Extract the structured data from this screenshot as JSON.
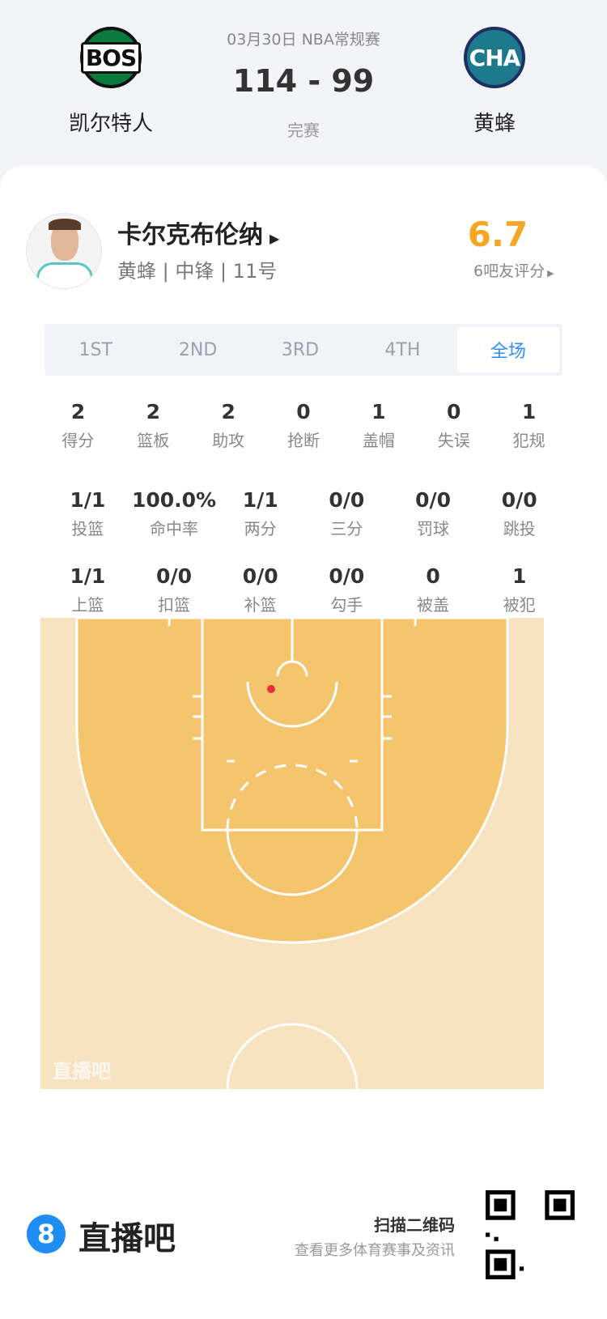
{
  "match": {
    "date_league": "03月30日 NBA常规赛",
    "score": "114 - 99",
    "status": "完赛",
    "home": {
      "abbr": "BOS",
      "name": "凯尔特人"
    },
    "away": {
      "abbr": "CHA",
      "name": "黄蜂"
    }
  },
  "player": {
    "name": "卡尔克布伦纳",
    "info": "黄蜂 | 中锋 | 11号",
    "rating": "6.7",
    "rating_label": "6吧友评分"
  },
  "tabs": [
    {
      "label": "1ST"
    },
    {
      "label": "2ND"
    },
    {
      "label": "3RD"
    },
    {
      "label": "4TH"
    },
    {
      "label": "全场",
      "active": true
    }
  ],
  "stats": [
    [
      {
        "v": "2",
        "l": "得分"
      },
      {
        "v": "2",
        "l": "篮板"
      },
      {
        "v": "2",
        "l": "助攻"
      },
      {
        "v": "0",
        "l": "抢断"
      },
      {
        "v": "1",
        "l": "盖帽"
      },
      {
        "v": "0",
        "l": "失误"
      },
      {
        "v": "1",
        "l": "犯规"
      }
    ],
    [
      {
        "v": "1/1",
        "l": "投篮"
      },
      {
        "v": "100.0%",
        "l": "命中率"
      },
      {
        "v": "1/1",
        "l": "两分"
      },
      {
        "v": "0/0",
        "l": "三分"
      },
      {
        "v": "0/0",
        "l": "罚球"
      },
      {
        "v": "0/0",
        "l": "跳投"
      }
    ],
    [
      {
        "v": "1/1",
        "l": "上篮"
      },
      {
        "v": "0/0",
        "l": "扣篮"
      },
      {
        "v": "0/0",
        "l": "补篮"
      },
      {
        "v": "0/0",
        "l": "勾手"
      },
      {
        "v": "0",
        "l": "被盖"
      },
      {
        "v": "1",
        "l": "被犯"
      }
    ]
  ],
  "court": {
    "watermark": "直播吧",
    "shots": [
      {
        "made": true,
        "color": "#e8303a"
      }
    ]
  },
  "footer": {
    "brand": "直播吧",
    "brand_icon": "8",
    "qr_title": "扫描二维码",
    "qr_sub": "查看更多体育赛事及资讯"
  },
  "colors": {
    "accent": "#2e8ef5",
    "rating": "#f5a623",
    "court_inner": "#f5c56e",
    "court_outer": "#f8e3c0"
  }
}
